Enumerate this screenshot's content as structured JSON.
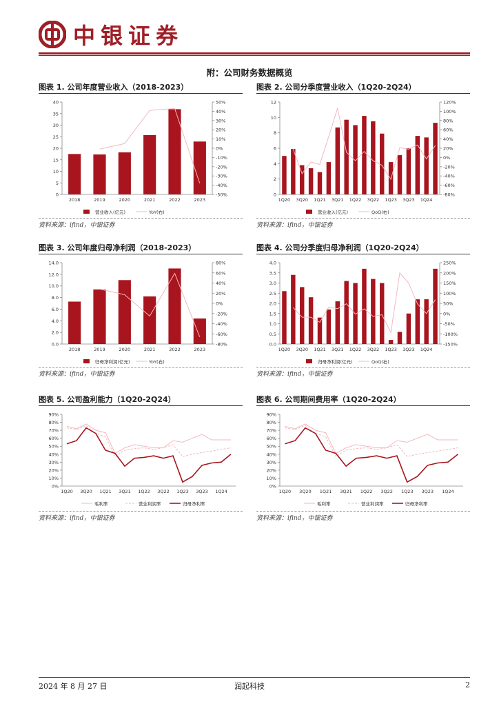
{
  "header": {
    "brand": "中银证券"
  },
  "section_title": "附：公司财务数据概览",
  "source_text": "资料来源：ifind，中银证券",
  "footer": {
    "date": "2024 年 8 月 27 日",
    "company": "润起科技",
    "page": "2"
  },
  "colors": {
    "brand": "#a01e26",
    "bar": "#a8151e",
    "line_light": "#f2b8bf",
    "line_dark": "#a8151e"
  },
  "chart_data": [
    {
      "id": "fig1",
      "type": "bar",
      "title": "图表 1. 公司年度营业收入（2018-2023）",
      "categories": [
        "2018",
        "2019",
        "2020",
        "2021",
        "2022",
        "2023"
      ],
      "series": [
        {
          "name": "营业收入(亿元)",
          "kind": "bar",
          "axis": "left",
          "values": [
            17.5,
            17.3,
            18.2,
            25.7,
            36.9,
            22.9
          ]
        },
        {
          "name": "YoY(右)",
          "kind": "line",
          "axis": "right",
          "style": "light",
          "values": [
            null,
            -1,
            5,
            41,
            43,
            -38
          ]
        }
      ],
      "left_axis": {
        "min": 0,
        "max": 40,
        "ticks": [
          "0",
          "5",
          "10",
          "15",
          "20",
          "25",
          "30",
          "35",
          "40"
        ]
      },
      "right_axis": {
        "min": -50,
        "max": 50,
        "ticks": [
          "-50%",
          "-40%",
          "-30%",
          "-20%",
          "-10%",
          "0%",
          "10%",
          "20%",
          "30%",
          "40%",
          "50%"
        ]
      },
      "x_labels": [
        "2018",
        "2019",
        "2020",
        "2021",
        "2022",
        "2023"
      ]
    },
    {
      "id": "fig2",
      "type": "bar",
      "title": "图表 2. 公司分季度营业收入（1Q20-2Q24）",
      "categories": [
        "1Q20",
        "2Q20",
        "3Q20",
        "4Q20",
        "1Q21",
        "2Q21",
        "3Q21",
        "4Q21",
        "1Q22",
        "2Q22",
        "3Q22",
        "4Q22",
        "1Q23",
        "2Q23",
        "3Q23",
        "4Q23",
        "1Q24",
        "2Q24"
      ],
      "series": [
        {
          "name": "营业收入(亿元)",
          "kind": "bar",
          "axis": "left",
          "values": [
            5.0,
            5.9,
            3.8,
            3.4,
            2.9,
            4.2,
            8.7,
            9.7,
            9.0,
            10.2,
            9.5,
            7.9,
            4.2,
            5.1,
            6.0,
            7.6,
            7.4,
            9.3
          ]
        },
        {
          "name": "QoQ(右)",
          "kind": "line",
          "axis": "right",
          "style": "light",
          "values": [
            null,
            18,
            -35,
            -10,
            -15,
            45,
            107,
            11,
            -7,
            13,
            -7,
            -17,
            -47,
            21,
            18,
            27,
            -3,
            26
          ]
        }
      ],
      "left_axis": {
        "min": 0,
        "max": 12,
        "ticks": [
          "0",
          "2",
          "4",
          "6",
          "8",
          "10",
          "12"
        ]
      },
      "right_axis": {
        "min": -80,
        "max": 120,
        "ticks": [
          "-80%",
          "-60%",
          "-40%",
          "-20%",
          "0%",
          "20%",
          "40%",
          "60%",
          "80%",
          "100%",
          "120%"
        ]
      },
      "x_labels": [
        "1Q20",
        "3Q20",
        "1Q21",
        "3Q21",
        "1Q22",
        "3Q22",
        "1Q23",
        "3Q23",
        "1Q24"
      ]
    },
    {
      "id": "fig3",
      "type": "bar",
      "title": "图表 3. 公司年度归母净利润（2018-2023）",
      "categories": [
        "2018",
        "2019",
        "2020",
        "2021",
        "2022",
        "2023"
      ],
      "series": [
        {
          "name": "归母净利润(亿元)",
          "kind": "bar",
          "axis": "left",
          "values": [
            7.3,
            9.4,
            11.0,
            8.2,
            13.0,
            4.4
          ]
        },
        {
          "name": "YoY(右)",
          "kind": "line",
          "axis": "right",
          "style": "light",
          "values": [
            null,
            28,
            17,
            -25,
            59,
            -66
          ]
        }
      ],
      "left_axis": {
        "min": 0,
        "max": 14,
        "ticks": [
          "0.0",
          "2.0",
          "4.0",
          "6.0",
          "8.0",
          "10.0",
          "12.0",
          "14.0"
        ]
      },
      "right_axis": {
        "min": -80,
        "max": 80,
        "ticks": [
          "-80%",
          "-60%",
          "-40%",
          "-20%",
          "0%",
          "20%",
          "40%",
          "60%",
          "80%"
        ]
      },
      "x_labels": [
        "2018",
        "2019",
        "2020",
        "2021",
        "2022",
        "2023"
      ]
    },
    {
      "id": "fig4",
      "type": "bar",
      "title": "图表 4. 公司分季度归母净利润（1Q20-2Q24）",
      "categories": [
        "1Q20",
        "2Q20",
        "3Q20",
        "4Q20",
        "1Q21",
        "2Q21",
        "3Q21",
        "4Q21",
        "1Q22",
        "2Q22",
        "3Q22",
        "4Q22",
        "1Q23",
        "2Q23",
        "3Q23",
        "4Q23",
        "1Q24",
        "2Q24"
      ],
      "series": [
        {
          "name": "归母净利润(亿元)",
          "kind": "bar",
          "axis": "left",
          "values": [
            2.6,
            3.4,
            2.8,
            2.3,
            1.3,
            1.7,
            2.1,
            3.1,
            3.0,
            3.7,
            3.2,
            3.0,
            0.2,
            0.6,
            1.5,
            2.2,
            2.2,
            3.7
          ]
        },
        {
          "name": "QoQ(右)",
          "kind": "line",
          "axis": "right",
          "style": "light",
          "values": [
            null,
            30,
            -18,
            -18,
            -43,
            31,
            24,
            48,
            -3,
            23,
            -14,
            -6,
            -93,
            200,
            150,
            47,
            0,
            68
          ]
        }
      ],
      "left_axis": {
        "min": 0,
        "max": 4,
        "ticks": [
          "0.0",
          "0.5",
          "1.0",
          "1.5",
          "2.0",
          "2.5",
          "3.0",
          "3.5",
          "4.0"
        ]
      },
      "right_axis": {
        "min": -150,
        "max": 250,
        "ticks": [
          "-150%",
          "-100%",
          "-50%",
          "0%",
          "50%",
          "100%",
          "150%",
          "200%",
          "250%"
        ]
      },
      "x_labels": [
        "1Q20",
        "3Q20",
        "1Q21",
        "3Q21",
        "1Q22",
        "3Q22",
        "1Q23",
        "3Q23",
        "1Q24"
      ]
    },
    {
      "id": "fig5",
      "type": "line",
      "title": "图表 5. 公司盈利能力（1Q20-2Q24）",
      "categories": [
        "1Q20",
        "2Q20",
        "3Q20",
        "4Q20",
        "1Q21",
        "2Q21",
        "3Q21",
        "4Q21",
        "1Q22",
        "2Q22",
        "3Q22",
        "4Q22",
        "1Q23",
        "2Q23",
        "3Q23",
        "4Q23",
        "1Q24",
        "2Q24"
      ],
      "series": [
        {
          "name": "毛利率",
          "kind": "line",
          "axis": "left",
          "style": "light",
          "values": [
            75,
            72,
            78,
            70,
            67,
            41,
            48,
            52,
            50,
            48,
            48,
            57,
            55,
            60,
            65,
            58,
            58,
            58
          ]
        },
        {
          "name": "营业利润率",
          "kind": "line",
          "axis": "left",
          "style": "dash",
          "values": [
            73,
            71,
            76,
            66,
            62,
            37,
            45,
            47,
            48,
            46,
            48,
            52,
            37,
            40,
            42,
            44,
            46,
            48
          ]
        },
        {
          "name": "归母净利率",
          "kind": "line",
          "axis": "left",
          "style": "dark",
          "values": [
            53,
            57,
            73,
            66,
            45,
            41,
            25,
            35,
            36,
            38,
            35,
            38,
            5,
            12,
            26,
            29,
            30,
            40
          ]
        }
      ],
      "left_axis": {
        "min": 0,
        "max": 90,
        "ticks": [
          "0%",
          "10%",
          "20%",
          "30%",
          "40%",
          "50%",
          "60%",
          "70%",
          "80%",
          "90%"
        ]
      },
      "x_labels": [
        "1Q20",
        "3Q20",
        "1Q21",
        "3Q21",
        "1Q22",
        "3Q22",
        "1Q23",
        "3Q23",
        "1Q24"
      ]
    },
    {
      "id": "fig6",
      "type": "line",
      "title": "图表 6. 公司期间费用率（1Q20-2Q24）",
      "categories": [
        "1Q20",
        "2Q20",
        "3Q20",
        "4Q20",
        "1Q21",
        "2Q21",
        "3Q21",
        "4Q21",
        "1Q22",
        "2Q22",
        "3Q22",
        "4Q22",
        "1Q23",
        "2Q23",
        "3Q23",
        "4Q23",
        "1Q24",
        "2Q24"
      ],
      "series": [
        {
          "name": "毛利率",
          "kind": "line",
          "axis": "left",
          "style": "light",
          "values": [
            75,
            72,
            78,
            70,
            67,
            41,
            48,
            52,
            50,
            48,
            48,
            57,
            55,
            60,
            65,
            58,
            58,
            58
          ]
        },
        {
          "name": "营业利润率",
          "kind": "line",
          "axis": "left",
          "style": "dash",
          "values": [
            73,
            71,
            76,
            66,
            62,
            37,
            45,
            47,
            48,
            46,
            48,
            52,
            37,
            40,
            42,
            44,
            46,
            48
          ]
        },
        {
          "name": "归母净利率",
          "kind": "line",
          "axis": "left",
          "style": "dark",
          "values": [
            53,
            57,
            73,
            66,
            45,
            41,
            25,
            35,
            36,
            38,
            35,
            38,
            5,
            12,
            26,
            29,
            30,
            40
          ]
        }
      ],
      "left_axis": {
        "min": 0,
        "max": 90,
        "ticks": [
          "0%",
          "10%",
          "20%",
          "30%",
          "40%",
          "50%",
          "60%",
          "70%",
          "80%",
          "90%"
        ]
      },
      "x_labels": [
        "1Q20",
        "3Q20",
        "1Q21",
        "3Q21",
        "1Q22",
        "3Q22",
        "1Q23",
        "3Q23",
        "1Q24"
      ]
    }
  ]
}
